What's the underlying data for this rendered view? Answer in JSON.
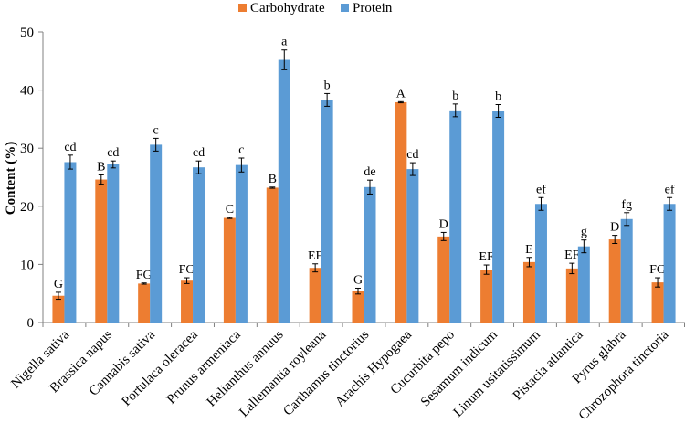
{
  "chart_data": {
    "type": "bar",
    "title": "",
    "xlabel": "",
    "ylabel": "Content (%)",
    "ylim": [
      0,
      50
    ],
    "yticks": [
      0,
      10,
      20,
      30,
      40,
      50
    ],
    "grid": false,
    "legend_position": "top",
    "categories": [
      "Nigella sativa",
      "Brassica napus",
      "Cannabis sativa",
      "Portulaca oleracea",
      "Prunus armeniaca",
      "Helianthus annuus",
      "Lallemantia royleana",
      "Carthamus tinctorius",
      "Arachis Hypogaea",
      "Cucurbita pepo",
      "Sesamum indicum",
      "Linum usitatissimum",
      "Pistacia atlantica",
      "Pyrus glabra",
      "Chrozophora tinctoria"
    ],
    "series": [
      {
        "name": "Carbohydrate",
        "color": "#ED7D31",
        "values": [
          4.6,
          24.6,
          6.7,
          7.2,
          18.0,
          23.2,
          9.4,
          5.4,
          37.9,
          14.8,
          9.1,
          10.4,
          9.3,
          14.3,
          6.9
        ],
        "errors": [
          0.6,
          0.8,
          0.1,
          0.5,
          0.1,
          0.1,
          0.7,
          0.5,
          0.1,
          0.7,
          0.8,
          0.8,
          0.9,
          0.7,
          0.8
        ],
        "labels": [
          "G",
          "B",
          "FG",
          "FG",
          "C",
          "B",
          "EF",
          "G",
          "A",
          "D",
          "EF",
          "E",
          "EF",
          "D",
          "FG"
        ]
      },
      {
        "name": "Protein",
        "color": "#5B9BD5",
        "values": [
          27.6,
          27.2,
          30.6,
          26.7,
          27.1,
          45.2,
          38.3,
          23.3,
          26.4,
          36.5,
          36.4,
          20.4,
          13.1,
          17.8,
          20.4
        ],
        "errors": [
          1.2,
          0.6,
          1.1,
          1.1,
          1.2,
          1.7,
          1.1,
          1.2,
          1.1,
          1.1,
          1.1,
          1.1,
          1.1,
          1.1,
          1.1
        ],
        "labels": [
          "cd",
          "cd",
          "c",
          "cd",
          "c",
          "a",
          "b",
          "de",
          "cd",
          "b",
          "b",
          "ef",
          "g",
          "fg",
          "ef"
        ]
      }
    ]
  }
}
